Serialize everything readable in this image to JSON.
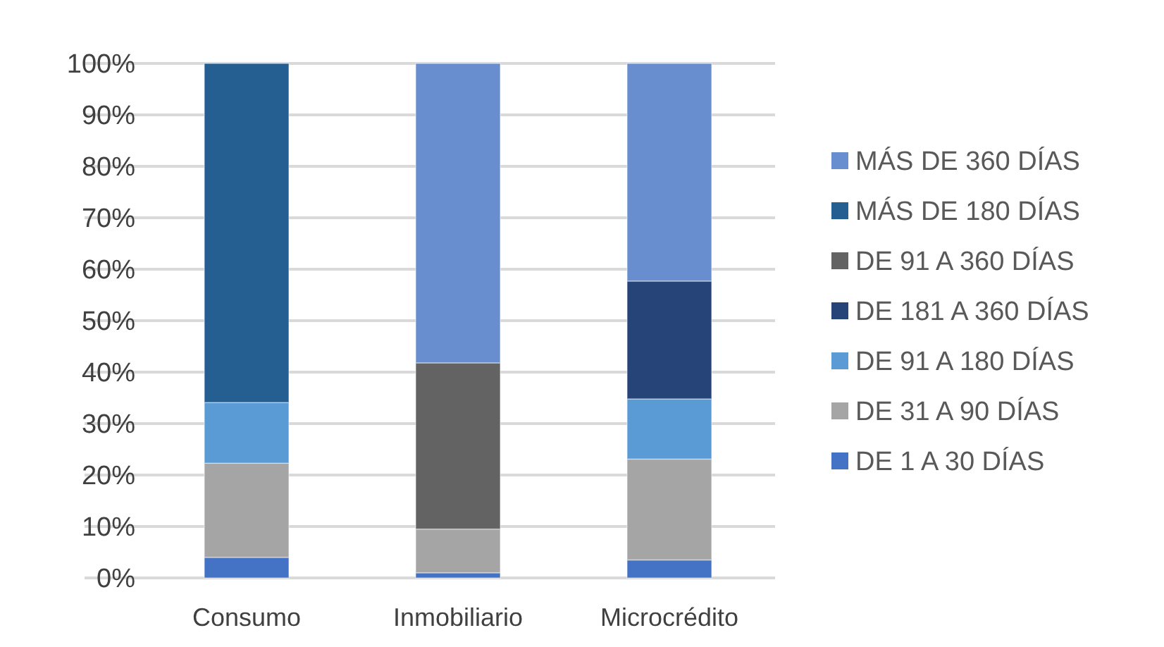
{
  "chart_data": {
    "type": "bar",
    "stacked": true,
    "categories": [
      "Consumo",
      "Inmobiliario",
      "Microcrédito"
    ],
    "series": [
      {
        "name": "DE 1 A 30 DÍAS",
        "color": "#4472c4",
        "values": [
          4.0,
          1.0,
          3.5
        ]
      },
      {
        "name": "DE 31 A 90 DÍAS",
        "color": "#a5a5a5",
        "values": [
          18.3,
          8.5,
          19.6
        ]
      },
      {
        "name": "DE 91 A 180 DÍAS",
        "color": "#5b9bd5",
        "values": [
          11.8,
          null,
          11.7
        ]
      },
      {
        "name": "DE 181 A 360 DÍAS",
        "color": "#264478",
        "values": [
          null,
          null,
          22.9
        ]
      },
      {
        "name": "DE 91 A 360 DÍAS",
        "color": "#636363",
        "values": [
          null,
          32.3,
          null
        ]
      },
      {
        "name": "MÁS DE 180 DÍAS",
        "color": "#255e91",
        "values": [
          65.9,
          null,
          null
        ]
      },
      {
        "name": "MÁS DE 360 DÍAS",
        "color": "#698ed0",
        "values": [
          null,
          58.2,
          42.3
        ]
      }
    ],
    "ylim": [
      0,
      100
    ],
    "yticks": [
      {
        "value": 0,
        "label": "0%"
      },
      {
        "value": 10,
        "label": "10%"
      },
      {
        "value": 20,
        "label": "20%"
      },
      {
        "value": 30,
        "label": "30%"
      },
      {
        "value": 40,
        "label": "40%"
      },
      {
        "value": 50,
        "label": "50%"
      },
      {
        "value": 60,
        "label": "60%"
      },
      {
        "value": 70,
        "label": "70%"
      },
      {
        "value": 80,
        "label": "80%"
      },
      {
        "value": 90,
        "label": "90%"
      },
      {
        "value": 100,
        "label": "100%"
      }
    ],
    "grid": "y",
    "legend": "right"
  }
}
